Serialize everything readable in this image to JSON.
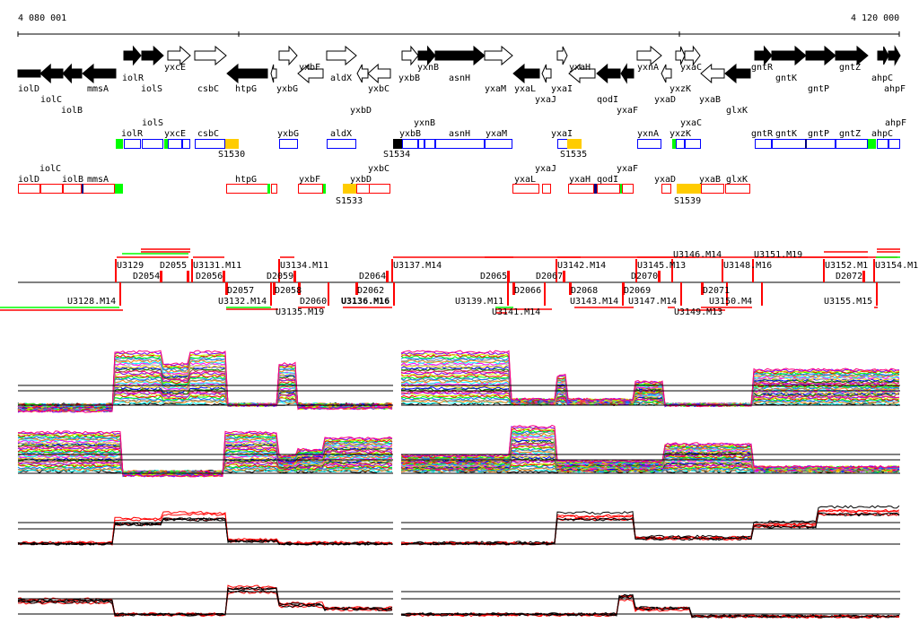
{
  "ruler": {
    "start_label": "4 080 001",
    "end_label": "4 120 000",
    "start_bp": 4080001,
    "end_bp": 4120000
  },
  "genes": [
    "iolD",
    "iolC",
    "iolB",
    "mmsA",
    "iolR",
    "iolS",
    "yxcE",
    "csbC",
    "htpG",
    "yxbG",
    "yxbF",
    "aldX",
    "yxbD",
    "yxbC",
    "yxbB",
    "yxnB",
    "asnH",
    "yxaM",
    "yxaL",
    "yxaJ",
    "yxaI",
    "yxaH",
    "qodI",
    "yxaF",
    "yxnA",
    "yxaD",
    "yxzK",
    "yxaC",
    "yxaB",
    "glxK",
    "gntR",
    "gntK",
    "gntP",
    "gntZ",
    "ahpC",
    "ahpF"
  ],
  "forward_track": {
    "labels": [
      "iolR",
      "iolS",
      "yxcE",
      "csbC",
      "yxbG",
      "aldX",
      "yxbB",
      "yxnB",
      "asnH",
      "yxaM",
      "yxaI",
      "yxnA",
      "yxzK",
      "yxaC",
      "gntR",
      "gntK",
      "gntP",
      "gntZ",
      "ahpC",
      "ahpF"
    ],
    "segments": [
      "S1530",
      "S1534",
      "S1535"
    ]
  },
  "reverse_track": {
    "labels": [
      "iolD",
      "iolC",
      "iolB",
      "mmsA",
      "htpG",
      "yxbF",
      "yxbD",
      "yxbC",
      "yxaL",
      "yxaJ",
      "yxaH",
      "qodI",
      "yxaF",
      "yxaD",
      "yxaB",
      "glxK"
    ],
    "segments": [
      "S1533",
      "S1539"
    ]
  },
  "features": {
    "upper": [
      "U3129",
      "U3131.M11",
      "U3134.M11",
      "U3137.M14",
      "U3142.M14",
      "U3145.M13",
      "U3146.M14",
      "U3148.M16",
      "U3151.M19",
      "U3152.M1",
      "U3154.M1"
    ],
    "upper_d": [
      "D2054",
      "D2055",
      "D2056",
      "D2059",
      "D2064",
      "D2065",
      "D2067",
      "D2070",
      "D2072"
    ],
    "lower_d": [
      "D2057",
      "D2058",
      "D2060",
      "D2062",
      "D2066",
      "D2068",
      "D2069",
      "D2071"
    ],
    "lower": [
      "U3128.M14",
      "U3132.M14",
      "U3135.M19",
      "U3136.M16",
      "U3139.M11",
      "U3141.M14",
      "U3143.M14",
      "U3147.M14",
      "U3149.M13",
      "U3150.M4",
      "U3155.M15"
    ]
  },
  "colors": {
    "forward_box": "#0000ff",
    "reverse_box": "#ff0000",
    "segment": "#ffcc00",
    "start_marker": "#00ff00",
    "dark_marker": "#000080"
  }
}
